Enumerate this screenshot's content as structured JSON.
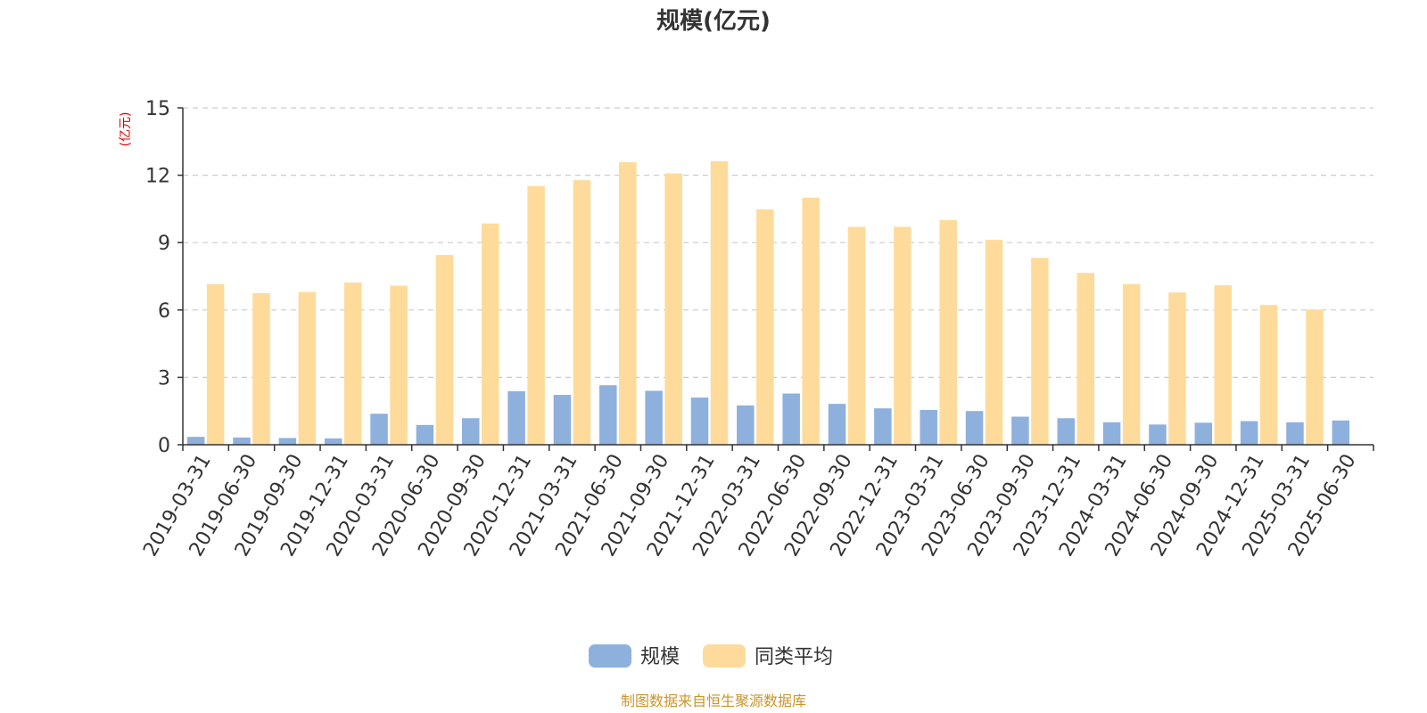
{
  "chart_data": {
    "type": "bar",
    "title": "规模(亿元)",
    "ylabel": "(亿元)",
    "ylim": [
      0,
      15
    ],
    "yticks": [
      0,
      3,
      6,
      9,
      12,
      15
    ],
    "grid": true,
    "legend_position": "bottom-center",
    "categories": [
      "2019-03-31",
      "2019-06-30",
      "2019-09-30",
      "2019-12-31",
      "2020-03-31",
      "2020-06-30",
      "2020-09-30",
      "2020-12-31",
      "2021-03-31",
      "2021-06-30",
      "2021-09-30",
      "2021-12-31",
      "2022-03-31",
      "2022-06-30",
      "2022-09-30",
      "2022-12-31",
      "2023-03-31",
      "2023-06-30",
      "2023-09-30",
      "2023-12-31",
      "2024-03-31",
      "2024-06-30",
      "2024-09-30",
      "2024-12-31",
      "2025-03-31",
      "2025-06-30"
    ],
    "series": [
      {
        "name": "规模",
        "color": "#8eb0dd",
        "values": [
          0.35,
          0.32,
          0.3,
          0.28,
          1.38,
          0.88,
          1.18,
          2.38,
          2.22,
          2.65,
          2.4,
          2.1,
          1.75,
          2.28,
          1.82,
          1.62,
          1.55,
          1.5,
          1.25,
          1.18,
          1.0,
          0.9,
          0.98,
          1.05,
          1.0,
          1.08
        ]
      },
      {
        "name": "同类平均",
        "color": "#fedb9a",
        "values": [
          7.15,
          6.75,
          6.8,
          7.22,
          7.08,
          8.45,
          9.85,
          11.52,
          11.78,
          12.58,
          12.08,
          12.62,
          10.48,
          11.0,
          9.7,
          9.7,
          10.0,
          9.12,
          8.32,
          7.65,
          7.15,
          6.78,
          7.1,
          6.22,
          6.02,
          null
        ]
      }
    ]
  },
  "footer_text": "制图数据来自恒生聚源数据库",
  "colors": {
    "axis": "#333333",
    "grid": "#cccccc",
    "title": "#333333",
    "ylabel": "#e60000",
    "footer": "#c8962a"
  }
}
